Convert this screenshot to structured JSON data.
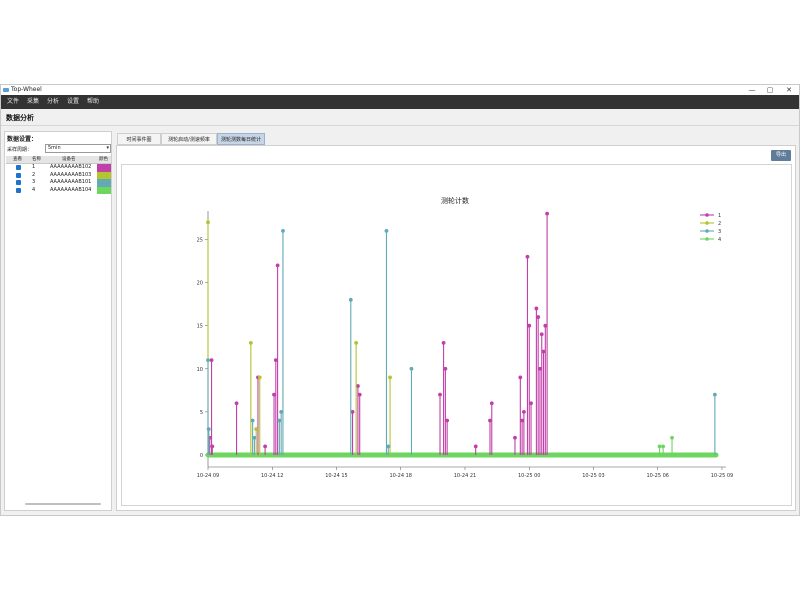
{
  "window": {
    "title": "Top-Wheel",
    "controls": {
      "minimize": "—",
      "maximize": "▢",
      "close": "✕"
    }
  },
  "menu": {
    "items": [
      "文件",
      "采集",
      "分析",
      "设置",
      "帮助"
    ]
  },
  "page_title": "数据分析",
  "left_panel": {
    "heading": "数据设置：",
    "granularity_label": "采样周期：",
    "granularity_value": "5min",
    "table": {
      "headers": [
        "查看",
        "名称",
        "设备名",
        "颜色"
      ],
      "rows": [
        {
          "name": "1",
          "device": "AAAAAAAAB102",
          "color": "#c03fa8"
        },
        {
          "name": "2",
          "device": "AAAAAAAAB103",
          "color": "#b3c42e"
        },
        {
          "name": "3",
          "device": "AAAAAAAAB101",
          "color": "#62aab4"
        },
        {
          "name": "4",
          "device": "AAAAAAAAB104",
          "color": "#6dd65f"
        }
      ]
    }
  },
  "tabs": [
    "时间事件图",
    "测轮启动/测速频率",
    "测轮测数每日统计"
  ],
  "active_tab": 2,
  "export_button": "导出",
  "chart_data": {
    "type": "line",
    "title": "测轮计数",
    "xlabel": "",
    "ylabel": "",
    "x_ticks": [
      "10-24 09",
      "10-24 12",
      "10-24 15",
      "10-24 18",
      "10-24 21",
      "10-25 00",
      "10-25 03",
      "10-25 06",
      "10-25 09"
    ],
    "x_range": [
      "10-24 09",
      "10-25 09"
    ],
    "y_ticks": [
      0,
      5,
      10,
      15,
      20,
      25
    ],
    "ylim": [
      0,
      29
    ],
    "grid": false,
    "legend": "top-right",
    "series": [
      {
        "name": "1",
        "color": "#c03fa8",
        "points": [
          [
            "10-24 09:10",
            11
          ],
          [
            "10-24 09:05",
            2
          ],
          [
            "10-24 09:12",
            1
          ],
          [
            "10-24 10:20",
            6
          ],
          [
            "10-24 11:20",
            9
          ],
          [
            "10-24 11:40",
            1
          ],
          [
            "10-24 12:05",
            7
          ],
          [
            "10-24 12:10",
            11
          ],
          [
            "10-24 12:15",
            22
          ],
          [
            "10-24 15:45",
            5
          ],
          [
            "10-24 16:00",
            8
          ],
          [
            "10-24 16:05",
            7
          ],
          [
            "10-24 19:50",
            7
          ],
          [
            "10-24 20:00",
            13
          ],
          [
            "10-24 20:05",
            10
          ],
          [
            "10-24 20:10",
            4
          ],
          [
            "10-24 21:30",
            1
          ],
          [
            "10-24 22:10",
            4
          ],
          [
            "10-24 22:15",
            6
          ],
          [
            "10-24 23:20",
            2
          ],
          [
            "10-24 23:35",
            9
          ],
          [
            "10-24 23:40",
            4
          ],
          [
            "10-24 23:45",
            5
          ],
          [
            "10-24 23:55",
            23
          ],
          [
            "10-25 00:00",
            15
          ],
          [
            "10-25 00:05",
            6
          ],
          [
            "10-25 00:20",
            17
          ],
          [
            "10-25 00:25",
            16
          ],
          [
            "10-25 00:30",
            10
          ],
          [
            "10-25 00:35",
            14
          ],
          [
            "10-25 00:40",
            12
          ],
          [
            "10-25 00:45",
            15
          ],
          [
            "10-25 00:50",
            28
          ]
        ]
      },
      {
        "name": "2",
        "color": "#b3c42e",
        "points": [
          [
            "10-24 09:00",
            27
          ],
          [
            "10-24 09:02",
            3
          ],
          [
            "10-24 11:00",
            13
          ],
          [
            "10-24 11:15",
            3
          ],
          [
            "10-24 11:25",
            9
          ],
          [
            "10-24 15:55",
            13
          ],
          [
            "10-24 17:30",
            9
          ]
        ]
      },
      {
        "name": "3",
        "color": "#62aab4",
        "points": [
          [
            "10-24 09:00",
            11
          ],
          [
            "10-24 09:02",
            3
          ],
          [
            "10-24 11:05",
            4
          ],
          [
            "10-24 11:10",
            2
          ],
          [
            "10-24 12:20",
            4
          ],
          [
            "10-24 12:25",
            5
          ],
          [
            "10-24 12:30",
            26
          ],
          [
            "10-24 15:40",
            18
          ],
          [
            "10-24 17:20",
            26
          ],
          [
            "10-24 17:25",
            1
          ],
          [
            "10-24 18:30",
            10
          ],
          [
            "10-25 08:40",
            7
          ]
        ]
      },
      {
        "name": "4",
        "color": "#6dd65f",
        "points": [
          [
            "10-25 06:05",
            1
          ],
          [
            "10-25 06:15",
            1
          ],
          [
            "10-25 06:40",
            2
          ]
        ]
      }
    ]
  }
}
